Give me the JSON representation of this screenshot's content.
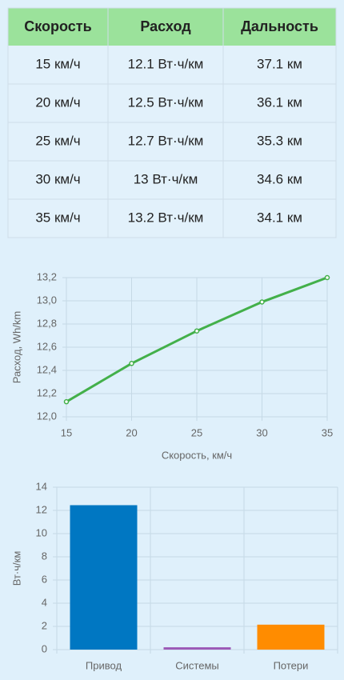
{
  "table": {
    "header": [
      "Скорость",
      "Расход",
      "Дальность"
    ],
    "rows": [
      [
        "15 км/ч",
        "12.1 Вт·ч/км",
        "37.1 км"
      ],
      [
        "20 км/ч",
        "12.5 Вт·ч/км",
        "36.1 км"
      ],
      [
        "25 км/ч",
        "12.7 Вт·ч/км",
        "35.3 км"
      ],
      [
        "30 км/ч",
        "13 Вт·ч/км",
        "34.6 км"
      ],
      [
        "35 км/ч",
        "13.2 Вт·ч/км",
        "34.1 км"
      ]
    ]
  },
  "chart_data": [
    {
      "type": "line",
      "x_label": "Скорость, км/ч",
      "y_label": "Расход, Wh/km",
      "x": [
        15,
        20,
        25,
        30,
        35
      ],
      "values": [
        12.13,
        12.46,
        12.74,
        12.99,
        13.2
      ],
      "color": "#43b04a",
      "xlim": [
        15,
        35
      ],
      "xticks": [
        15,
        20,
        25,
        30,
        35
      ],
      "ylim": [
        12.0,
        13.2
      ],
      "yticks": [
        {
          "value": 12.0,
          "label": "12,0"
        },
        {
          "value": 12.2,
          "label": "12,2"
        },
        {
          "value": 12.4,
          "label": "12,4"
        },
        {
          "value": 12.6,
          "label": "12,6"
        },
        {
          "value": 12.8,
          "label": "12,8"
        },
        {
          "value": 13.0,
          "label": "13,0"
        },
        {
          "value": 13.2,
          "label": "13,2"
        }
      ],
      "grid": true
    },
    {
      "type": "bar",
      "y_label": "Вт·ч/км",
      "categories": [
        "Привод",
        "Системы",
        "Потери"
      ],
      "values": [
        12.45,
        0.2,
        2.15
      ],
      "colors": [
        "#0077c2",
        "#9b59b6",
        "#ff8c00"
      ],
      "ylim": [
        0,
        14
      ],
      "yticks": [
        0,
        2,
        4,
        6,
        8,
        10,
        12,
        14
      ],
      "grid": true
    }
  ]
}
